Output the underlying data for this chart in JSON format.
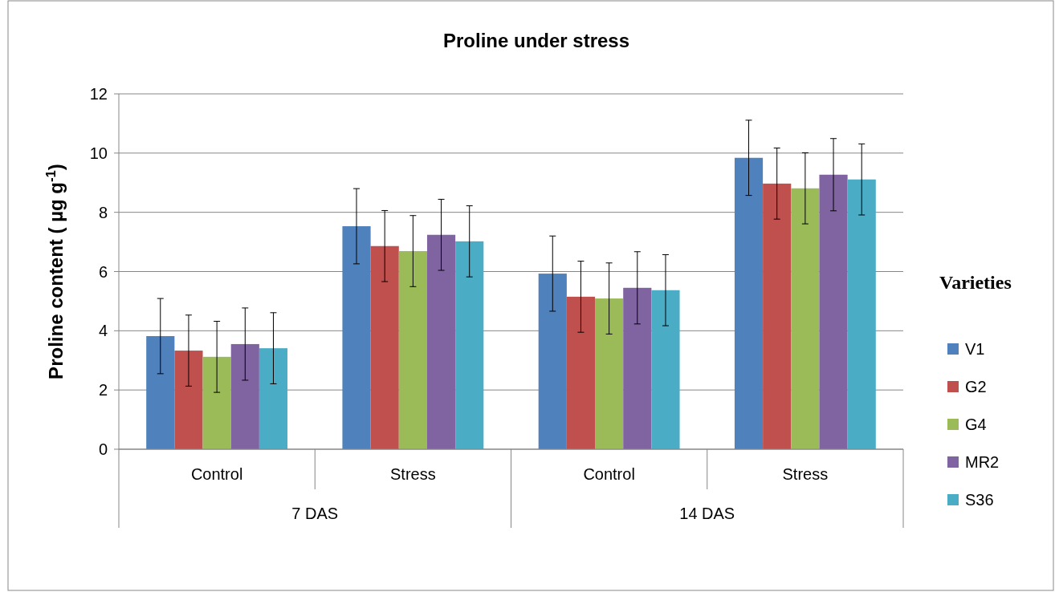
{
  "chart_data": {
    "type": "bar",
    "title": "Proline under stress",
    "ylabel": "Proline content ( µg g$^{-1}$)",
    "legend_title": "Varieties",
    "categories": [
      "Control",
      "Stress",
      "Control",
      "Stress"
    ],
    "annotations": [
      "7  DAS",
      "14 DAS"
    ],
    "series": [
      {
        "name": "V1",
        "color": "#4f81bd",
        "values": [
          3.82,
          7.53,
          5.93,
          9.84
        ],
        "errors": [
          1.27,
          1.27,
          1.27,
          1.27
        ]
      },
      {
        "name": "G2",
        "color": "#c0504d",
        "values": [
          3.33,
          6.86,
          5.15,
          8.97
        ],
        "errors": [
          1.2,
          1.2,
          1.2,
          1.2
        ]
      },
      {
        "name": "G4",
        "color": "#9bbb59",
        "values": [
          3.12,
          6.69,
          5.09,
          8.81
        ],
        "errors": [
          1.2,
          1.2,
          1.2,
          1.2
        ]
      },
      {
        "name": "MR2",
        "color": "#8064a2",
        "values": [
          3.55,
          7.24,
          5.45,
          9.27
        ],
        "errors": [
          1.22,
          1.2,
          1.22,
          1.22
        ]
      },
      {
        "name": "S36",
        "color": "#4bacc6",
        "values": [
          3.41,
          7.02,
          5.37,
          9.11
        ],
        "errors": [
          1.2,
          1.2,
          1.2,
          1.2
        ]
      }
    ],
    "ylim": [
      0,
      12
    ],
    "yticks": [
      0,
      2,
      4,
      6,
      8,
      10,
      12
    ],
    "grid": "y",
    "legend": "right"
  }
}
